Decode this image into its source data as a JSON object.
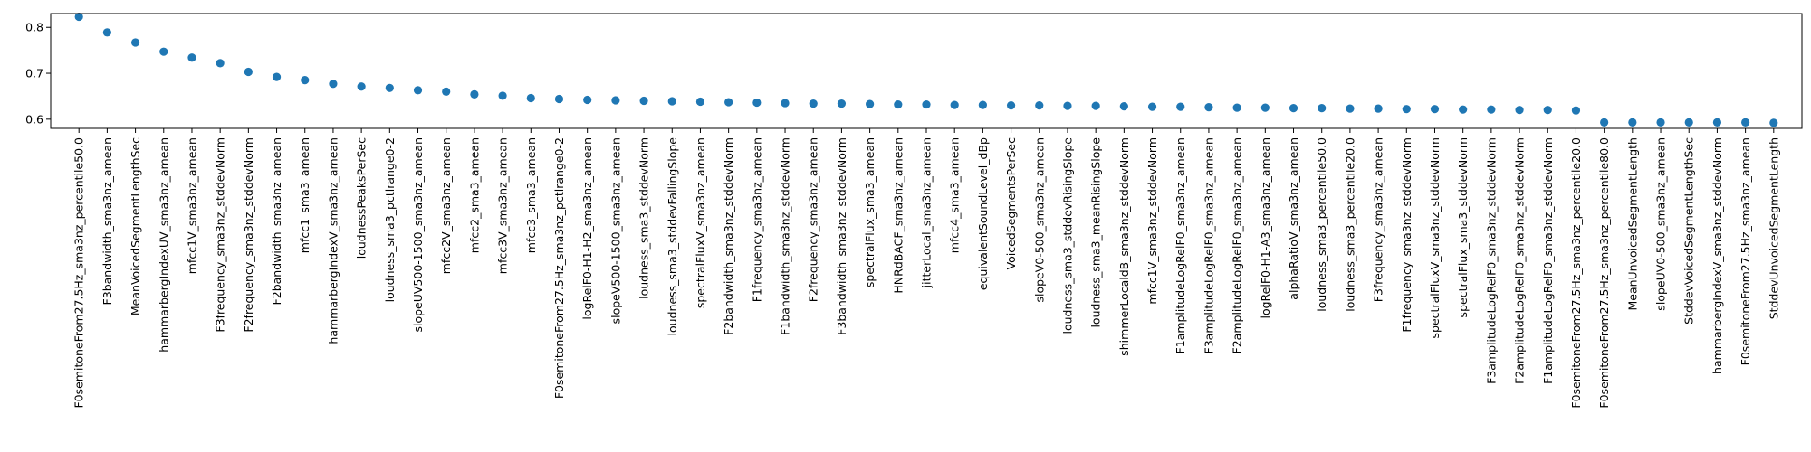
{
  "chart_data": {
    "type": "scatter",
    "title": "",
    "xlabel": "",
    "ylabel": "",
    "ylim": [
      0.58,
      0.83
    ],
    "yticks": [
      0.6,
      0.7,
      0.8
    ],
    "ytick_labels": [
      "0.6",
      "0.7",
      "0.8"
    ],
    "grid": false,
    "legend": "none",
    "point_color": "#1f77b4",
    "categories": [
      "F0semitoneFrom27.5Hz_sma3nz_percentile50.0",
      "F3bandwidth_sma3nz_amean",
      "MeanVoicedSegmentLengthSec",
      "hammarbergIndexUV_sma3nz_amean",
      "mfcc1V_sma3nz_amean",
      "F3frequency_sma3nz_stddevNorm",
      "F2frequency_sma3nz_stddevNorm",
      "F2bandwidth_sma3nz_amean",
      "mfcc1_sma3_amean",
      "hammarbergIndexV_sma3nz_amean",
      "loudnessPeaksPerSec",
      "loudness_sma3_pctlrange0-2",
      "slopeUV500-1500_sma3nz_amean",
      "mfcc2V_sma3nz_amean",
      "mfcc2_sma3_amean",
      "mfcc3V_sma3nz_amean",
      "mfcc3_sma3_amean",
      "F0semitoneFrom27.5Hz_sma3nz_pctlrange0-2",
      "logRelF0-H1-H2_sma3nz_amean",
      "slopeV500-1500_sma3nz_amean",
      "loudness_sma3_stddevNorm",
      "loudness_sma3_stddevFallingSlope",
      "spectralFluxV_sma3nz_amean",
      "F2bandwidth_sma3nz_stddevNorm",
      "F1frequency_sma3nz_amean",
      "F1bandwidth_sma3nz_stddevNorm",
      "F2frequency_sma3nz_amean",
      "F3bandwidth_sma3nz_stddevNorm",
      "spectralFlux_sma3_amean",
      "HNRdBACF_sma3nz_amean",
      "jitterLocal_sma3nz_amean",
      "mfcc4_sma3_amean",
      "equivalentSoundLevel_dBp",
      "VoicedSegmentsPerSec",
      "slopeV0-500_sma3nz_amean",
      "loudness_sma3_stddevRisingSlope",
      "loudness_sma3_meanRisingSlope",
      "shimmerLocaldB_sma3nz_stddevNorm",
      "mfcc1V_sma3nz_stddevNorm",
      "F1amplitudeLogRelF0_sma3nz_amean",
      "F3amplitudeLogRelF0_sma3nz_amean",
      "F2amplitudeLogRelF0_sma3nz_amean",
      "logRelF0-H1-A3_sma3nz_amean",
      "alphaRatioV_sma3nz_amean",
      "loudness_sma3_percentile50.0",
      "loudness_sma3_percentile20.0",
      "F3frequency_sma3nz_amean",
      "F1frequency_sma3nz_stddevNorm",
      "spectralFluxV_sma3nz_stddevNorm",
      "spectralFlux_sma3_stddevNorm",
      "F3amplitudeLogRelF0_sma3nz_stddevNorm",
      "F2amplitudeLogRelF0_sma3nz_stddevNorm",
      "F1amplitudeLogRelF0_sma3nz_stddevNorm",
      "F0semitoneFrom27.5Hz_sma3nz_percentile20.0",
      "F0semitoneFrom27.5Hz_sma3nz_percentile80.0",
      "MeanUnvoicedSegmentLength",
      "slopeUV0-500_sma3nz_amean",
      "StddevVoicedSegmentLengthSec",
      "hammarbergIndexV_sma3nz_stddevNorm",
      "F0semitoneFrom27.5Hz_sma3nz_amean",
      "StddevUnvoicedSegmentLength"
    ],
    "values": [
      0.823,
      0.789,
      0.767,
      0.747,
      0.734,
      0.722,
      0.703,
      0.692,
      0.685,
      0.677,
      0.671,
      0.668,
      0.663,
      0.66,
      0.654,
      0.651,
      0.646,
      0.644,
      0.642,
      0.641,
      0.64,
      0.639,
      0.638,
      0.637,
      0.636,
      0.635,
      0.634,
      0.634,
      0.633,
      0.632,
      0.632,
      0.631,
      0.631,
      0.63,
      0.63,
      0.629,
      0.629,
      0.628,
      0.627,
      0.627,
      0.626,
      0.625,
      0.625,
      0.624,
      0.624,
      0.623,
      0.623,
      0.622,
      0.622,
      0.621,
      0.621,
      0.62,
      0.62,
      0.619,
      0.593,
      0.593,
      0.593,
      0.593,
      0.593,
      0.593,
      0.592
    ]
  }
}
